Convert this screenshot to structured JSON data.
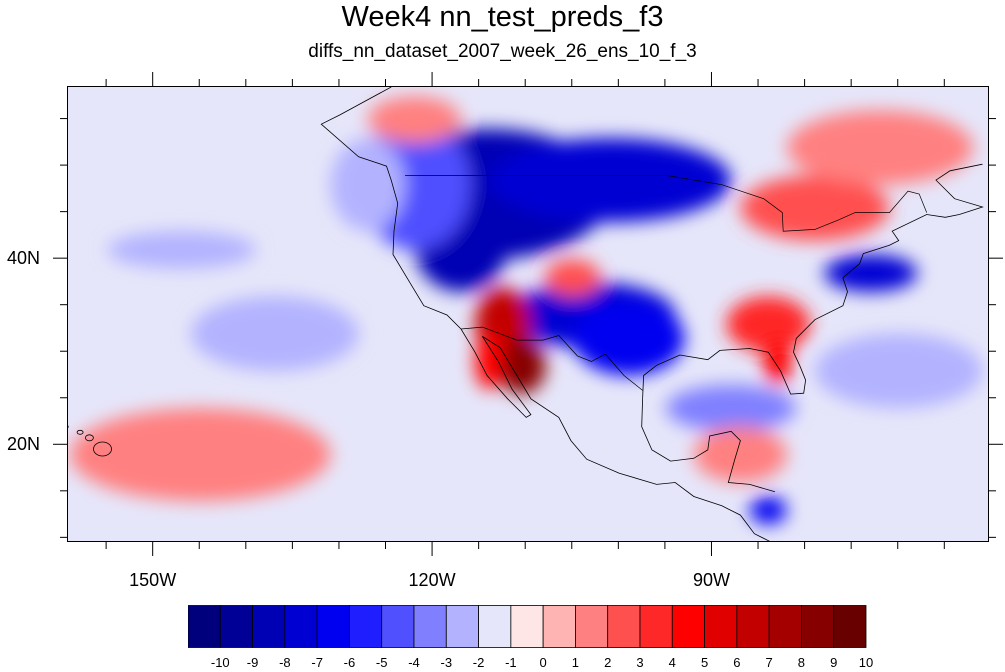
{
  "title": "Week4 nn_test_preds_f3",
  "subtitle": "diffs_nn_dataset_2007_week_26_ens_10_f_3",
  "map": {
    "lon_range": [
      -159.2,
      -60.2
    ],
    "lat_range": [
      9.5,
      58.5
    ],
    "lon_labels": [
      {
        "value": -150,
        "text": "150W"
      },
      {
        "value": -120,
        "text": "120W"
      },
      {
        "value": -90,
        "text": "90W"
      }
    ],
    "lat_labels": [
      {
        "value": 40,
        "text": "40N"
      },
      {
        "value": 20,
        "text": "20N"
      }
    ],
    "field": "diffs (prediction minus observation)",
    "features": [
      {
        "name": "northwest-us-deficit",
        "level": -8,
        "lon": -114,
        "lat": 47,
        "rlon": 13,
        "rlat": 7
      },
      {
        "name": "northern-plains-deficit",
        "level": -7,
        "lon": -101,
        "lat": 48.5,
        "rlon": 13,
        "rlat": 4.5
      },
      {
        "name": "great-basin-deficit",
        "level": -8,
        "lon": -117,
        "lat": 41.5,
        "rlon": 5,
        "rlat": 5
      },
      {
        "name": "pacific-northwest-blue",
        "level": -4,
        "lon": -122,
        "lat": 48,
        "rlon": 6,
        "rlat": 7
      },
      {
        "name": "southern-plains-deficit",
        "level": -7,
        "lon": -103,
        "lat": 34,
        "rlon": 9,
        "rlat": 3.5
      },
      {
        "name": "texas-deficit",
        "level": -6,
        "lon": -99,
        "lat": 31.5,
        "rlon": 6,
        "rlat": 4
      },
      {
        "name": "arizona-surplus",
        "level": 7,
        "lon": -112.5,
        "lat": 33,
        "rlon": 3,
        "rlat": 4
      },
      {
        "name": "sonora-surplus",
        "level": 9,
        "lon": -110.5,
        "lat": 28.5,
        "rlon": 2.6,
        "rlat": 3
      },
      {
        "name": "baja-surplus",
        "level": 5,
        "lon": -114,
        "lat": 29,
        "rlon": 1.5,
        "rlat": 3
      },
      {
        "name": "southeast-surplus",
        "level": 4,
        "lon": -84,
        "lat": 33,
        "rlon": 4.5,
        "rlat": 3
      },
      {
        "name": "florida-surplus",
        "level": 5,
        "lon": -83,
        "lat": 29,
        "rlon": 1.5,
        "rlat": 2.5
      },
      {
        "name": "great-lakes-surplus",
        "level": 3,
        "lon": -79,
        "lat": 45.5,
        "rlon": 8,
        "rlat": 3.5
      },
      {
        "name": "quebec-surplus",
        "level": 2,
        "lon": -72,
        "lat": 52,
        "rlon": 10,
        "rlat": 4
      },
      {
        "name": "colorado-surplus",
        "level": 3,
        "lon": -105,
        "lat": 38,
        "rlon": 3,
        "rlat": 2
      },
      {
        "name": "mid-atlantic-deficit",
        "level": -7,
        "lon": -73,
        "lat": 38.5,
        "rlon": 5,
        "rlat": 2
      },
      {
        "name": "pacific-anomaly-west",
        "level": -2,
        "lon": -147,
        "lat": 41,
        "rlon": 8,
        "rlat": 2
      },
      {
        "name": "pacific-anomaly-center",
        "level": -2,
        "lon": -137,
        "lat": 32,
        "rlon": 9,
        "rlat": 4
      },
      {
        "name": "pacific-anomaly-north",
        "level": -2,
        "lon": -127,
        "lat": 48,
        "rlon": 4,
        "rlat": 5
      },
      {
        "name": "subtropical-pacific-red",
        "level": 2,
        "lon": -145,
        "lat": 19,
        "rlon": 14,
        "rlat": 5
      },
      {
        "name": "alaska-gulf-red",
        "level": 2,
        "lon": -122,
        "lat": 55,
        "rlon": 5,
        "rlat": 2.5
      },
      {
        "name": "gulf-of-mexico-blue",
        "level": -3,
        "lon": -88,
        "lat": 24,
        "rlon": 7,
        "rlat": 2.5
      },
      {
        "name": "caribbean-red",
        "level": 2,
        "lon": -87,
        "lat": 19,
        "rlon": 5,
        "rlat": 3
      },
      {
        "name": "tropical-atlantic-blue",
        "level": -2,
        "lon": -70,
        "lat": 28,
        "rlon": 9,
        "rlat": 4
      },
      {
        "name": "central-america-deficit",
        "level": -6,
        "lon": -84,
        "lat": 13,
        "rlon": 2,
        "rlat": 1.5
      }
    ]
  },
  "colorbar": {
    "labels": [
      "-10",
      "-9",
      "-8",
      "-7",
      "-6",
      "-5",
      "-4",
      "-3",
      "-2",
      "-1",
      "0",
      "1",
      "2",
      "3",
      "4",
      "5",
      "6",
      "7",
      "8",
      "9",
      "10"
    ],
    "colors": [
      "#00007d",
      "#000097",
      "#0000b4",
      "#0000d3",
      "#0000f0",
      "#1e1eff",
      "#5050ff",
      "#8080ff",
      "#b2b2ff",
      "#e6e6fa",
      "#ffe6e6",
      "#ffb4b4",
      "#ff8080",
      "#ff5050",
      "#ff2828",
      "#ff0000",
      "#e10000",
      "#c30000",
      "#a50000",
      "#870000",
      "#690000"
    ]
  }
}
